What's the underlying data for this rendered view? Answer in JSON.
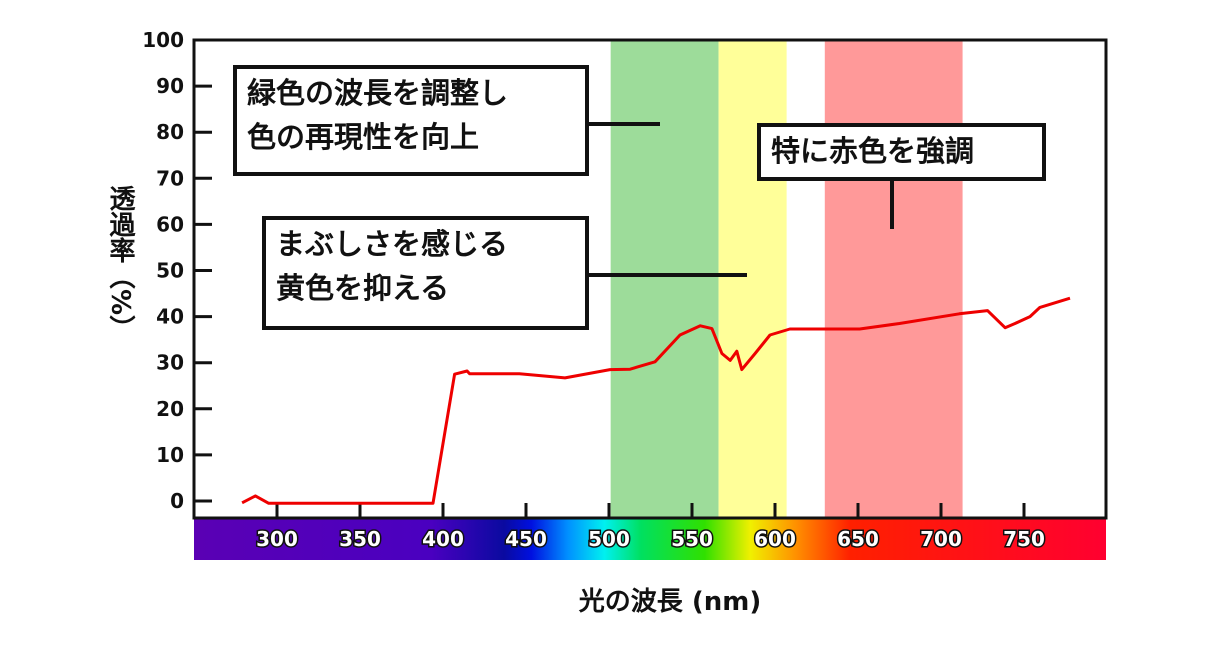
{
  "chart_data": {
    "type": "line",
    "title": "",
    "xlabel": "光の波長 (nm)",
    "ylabel": "透過率（%）",
    "xlim": [
      252,
      801
    ],
    "ylim": [
      -3,
      100
    ],
    "x_ticks": [
      300,
      350,
      400,
      450,
      500,
      550,
      600,
      650,
      700,
      750
    ],
    "y_ticks": [
      0,
      10,
      20,
      30,
      40,
      50,
      60,
      70,
      80,
      90,
      100
    ],
    "grid": false,
    "series": [
      {
        "color": "#ee0000",
        "x": [
          279,
          287,
          295,
          394,
          407,
          414.5,
          416,
          446,
          473.5,
          500.6,
          512.7,
          527.7,
          542.8,
          555,
          562,
          568,
          573,
          577,
          580,
          588,
          597,
          609,
          651,
          675,
          711,
          728,
          738.6,
          744.6,
          753.6,
          759.6,
          777.7
        ],
        "y": [
          -0.4,
          1.1,
          -0.5,
          -0.5,
          27.5,
          28.2,
          27.6,
          27.6,
          26.7,
          28.5,
          28.6,
          30.2,
          36,
          38,
          37.4,
          32,
          30.5,
          32.5,
          28.5,
          32,
          36,
          37.3,
          37.3,
          38.5,
          40.6,
          41.3,
          37.6,
          38.5,
          40,
          42,
          44
        ]
      }
    ],
    "bands": [
      {
        "from": 501,
        "to": 566,
        "color": "#9ddc9a"
      },
      {
        "from": 566,
        "to": 607,
        "color": "#ffff99"
      },
      {
        "from": 630,
        "to": 713,
        "color": "#ff9999"
      }
    ],
    "spectrum_bar": true,
    "annotations": [
      {
        "lines": [
          "緑色の波長を調整し",
          "色の再現性を向上"
        ]
      },
      {
        "lines": [
          "まぶしさを感じる",
          "黄色を抑える"
        ]
      },
      {
        "lines": [
          "特に赤色を強調"
        ]
      }
    ]
  }
}
